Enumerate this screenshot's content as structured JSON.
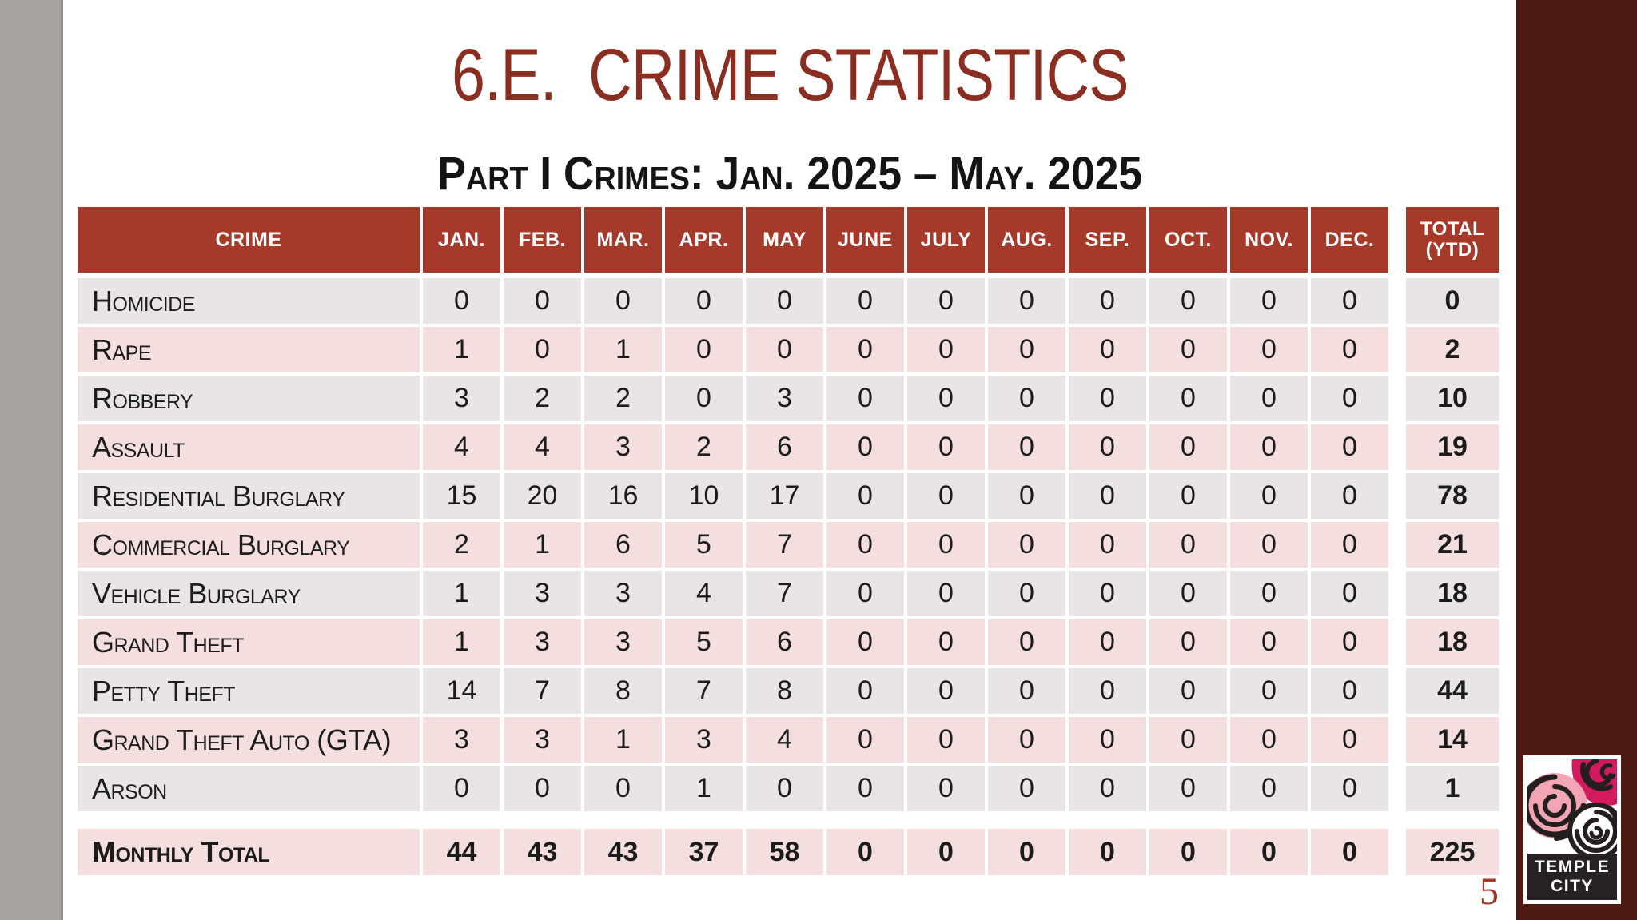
{
  "slide": {
    "title": "6.E.  CRIME STATISTICS",
    "subtitle": "Part I Crimes: Jan. 2025 – May. 2025",
    "page_number": "5"
  },
  "table": {
    "header": {
      "crime": "CRIME",
      "months": [
        "JAN.",
        "FEB.",
        "MAR.",
        "APR.",
        "MAY",
        "JUNE",
        "JULY",
        "AUG.",
        "SEP.",
        "OCT.",
        "NOV.",
        "DEC."
      ],
      "total_line1": "TOTAL",
      "total_line2": "(YTD)"
    },
    "rows": [
      {
        "crime": "Homicide",
        "values": [
          0,
          0,
          0,
          0,
          0,
          0,
          0,
          0,
          0,
          0,
          0,
          0
        ],
        "total": 0
      },
      {
        "crime": "Rape",
        "values": [
          1,
          0,
          1,
          0,
          0,
          0,
          0,
          0,
          0,
          0,
          0,
          0
        ],
        "total": 2
      },
      {
        "crime": "Robbery",
        "values": [
          3,
          2,
          2,
          0,
          3,
          0,
          0,
          0,
          0,
          0,
          0,
          0
        ],
        "total": 10
      },
      {
        "crime": "Assault",
        "values": [
          4,
          4,
          3,
          2,
          6,
          0,
          0,
          0,
          0,
          0,
          0,
          0
        ],
        "total": 19
      },
      {
        "crime": "Residential Burglary",
        "values": [
          15,
          20,
          16,
          10,
          17,
          0,
          0,
          0,
          0,
          0,
          0,
          0
        ],
        "total": 78
      },
      {
        "crime": "Commercial Burglary",
        "values": [
          2,
          1,
          6,
          5,
          7,
          0,
          0,
          0,
          0,
          0,
          0,
          0
        ],
        "total": 21
      },
      {
        "crime": "Vehicle Burglary",
        "values": [
          1,
          3,
          3,
          4,
          7,
          0,
          0,
          0,
          0,
          0,
          0,
          0
        ],
        "total": 18
      },
      {
        "crime": "Grand Theft",
        "values": [
          1,
          3,
          3,
          5,
          6,
          0,
          0,
          0,
          0,
          0,
          0,
          0
        ],
        "total": 18
      },
      {
        "crime": "Petty Theft",
        "values": [
          14,
          7,
          8,
          7,
          8,
          0,
          0,
          0,
          0,
          0,
          0,
          0
        ],
        "total": 44
      },
      {
        "crime": "Grand Theft Auto (GTA)",
        "values": [
          3,
          3,
          1,
          3,
          4,
          0,
          0,
          0,
          0,
          0,
          0,
          0
        ],
        "total": 14
      },
      {
        "crime": "Arson",
        "values": [
          0,
          0,
          0,
          1,
          0,
          0,
          0,
          0,
          0,
          0,
          0,
          0
        ],
        "total": 1
      }
    ],
    "footer": {
      "label": "Monthly Total",
      "values": [
        44,
        43,
        43,
        37,
        58,
        0,
        0,
        0,
        0,
        0,
        0,
        0
      ],
      "total": 225
    }
  },
  "chart_data": {
    "type": "table",
    "title": "6.E. CRIME STATISTICS — Part I Crimes: Jan. 2025 – May. 2025",
    "columns": [
      "CRIME",
      "JAN.",
      "FEB.",
      "MAR.",
      "APR.",
      "MAY",
      "JUNE",
      "JULY",
      "AUG.",
      "SEP.",
      "OCT.",
      "NOV.",
      "DEC.",
      "TOTAL (YTD)"
    ],
    "rows": [
      [
        "Homicide",
        0,
        0,
        0,
        0,
        0,
        0,
        0,
        0,
        0,
        0,
        0,
        0,
        0
      ],
      [
        "Rape",
        1,
        0,
        1,
        0,
        0,
        0,
        0,
        0,
        0,
        0,
        0,
        0,
        2
      ],
      [
        "Robbery",
        3,
        2,
        2,
        0,
        3,
        0,
        0,
        0,
        0,
        0,
        0,
        0,
        10
      ],
      [
        "Assault",
        4,
        4,
        3,
        2,
        6,
        0,
        0,
        0,
        0,
        0,
        0,
        0,
        19
      ],
      [
        "Residential Burglary",
        15,
        20,
        16,
        10,
        17,
        0,
        0,
        0,
        0,
        0,
        0,
        0,
        78
      ],
      [
        "Commercial Burglary",
        2,
        1,
        6,
        5,
        7,
        0,
        0,
        0,
        0,
        0,
        0,
        0,
        21
      ],
      [
        "Vehicle Burglary",
        1,
        3,
        3,
        4,
        7,
        0,
        0,
        0,
        0,
        0,
        0,
        0,
        18
      ],
      [
        "Grand Theft",
        1,
        3,
        3,
        5,
        6,
        0,
        0,
        0,
        0,
        0,
        0,
        0,
        18
      ],
      [
        "Petty Theft",
        14,
        7,
        8,
        7,
        8,
        0,
        0,
        0,
        0,
        0,
        0,
        0,
        44
      ],
      [
        "Grand Theft Auto (GTA)",
        3,
        3,
        1,
        3,
        4,
        0,
        0,
        0,
        0,
        0,
        0,
        0,
        14
      ],
      [
        "Arson",
        0,
        0,
        0,
        1,
        0,
        0,
        0,
        0,
        0,
        0,
        0,
        0,
        1
      ],
      [
        "Monthly Total",
        44,
        43,
        43,
        37,
        58,
        0,
        0,
        0,
        0,
        0,
        0,
        0,
        225
      ]
    ]
  },
  "logo": {
    "line1": "TEMPLE",
    "line2": "CITY"
  },
  "colors": {
    "header_bg": "#a53a2b",
    "title_red": "#8b2e22",
    "row_gray": "#e9e5e4",
    "row_pink": "#f4dfde",
    "sidebar_maroon": "#4e1910",
    "left_bar_gray": "#a7a19f",
    "page_number_red": "#a33a28",
    "logo_pink": "#f2a6b4",
    "logo_magenta": "#d31a5f"
  }
}
